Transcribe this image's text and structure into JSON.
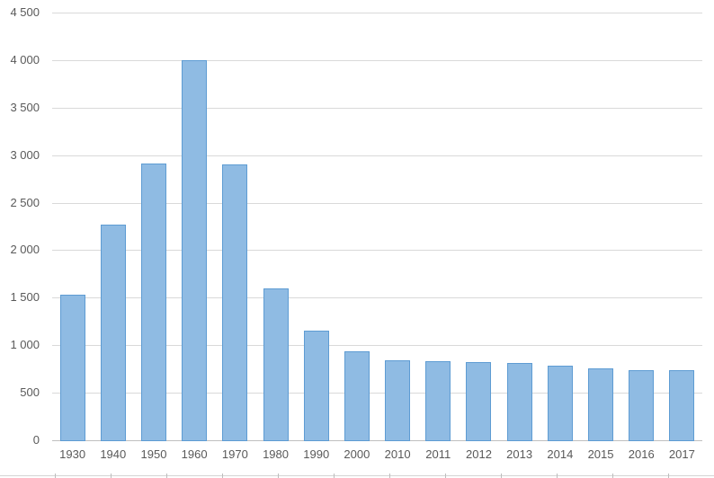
{
  "chart_data": {
    "type": "bar",
    "title": "",
    "xlabel": "",
    "ylabel": "",
    "categories": [
      "1930",
      "1940",
      "1950",
      "1960",
      "1970",
      "1980",
      "1990",
      "2000",
      "2010",
      "2011",
      "2012",
      "2013",
      "2014",
      "2015",
      "2016",
      "2017"
    ],
    "values": [
      1530,
      2270,
      2910,
      4000,
      2900,
      1600,
      1150,
      935,
      840,
      830,
      825,
      810,
      780,
      760,
      740,
      740
    ],
    "ylim": [
      0,
      4500
    ],
    "y_tick_interval": 500,
    "y_tick_labels": [
      "0",
      "500",
      "1 000",
      "1 500",
      "2 000",
      "2 500",
      "3 000",
      "3 500",
      "4 000",
      "4 500"
    ],
    "grid": true,
    "legend": "none"
  },
  "colors": {
    "background": "#FFFFFF",
    "bar_fill": "#8FBBE3",
    "bar_border": "#5E9CD3",
    "gridline": "#D9D9D9",
    "axis_line": "#BFBFBF",
    "label_text": "#595959",
    "sheet_border": "#D5D5D5",
    "sheet_tick": "#BDBDBD"
  }
}
